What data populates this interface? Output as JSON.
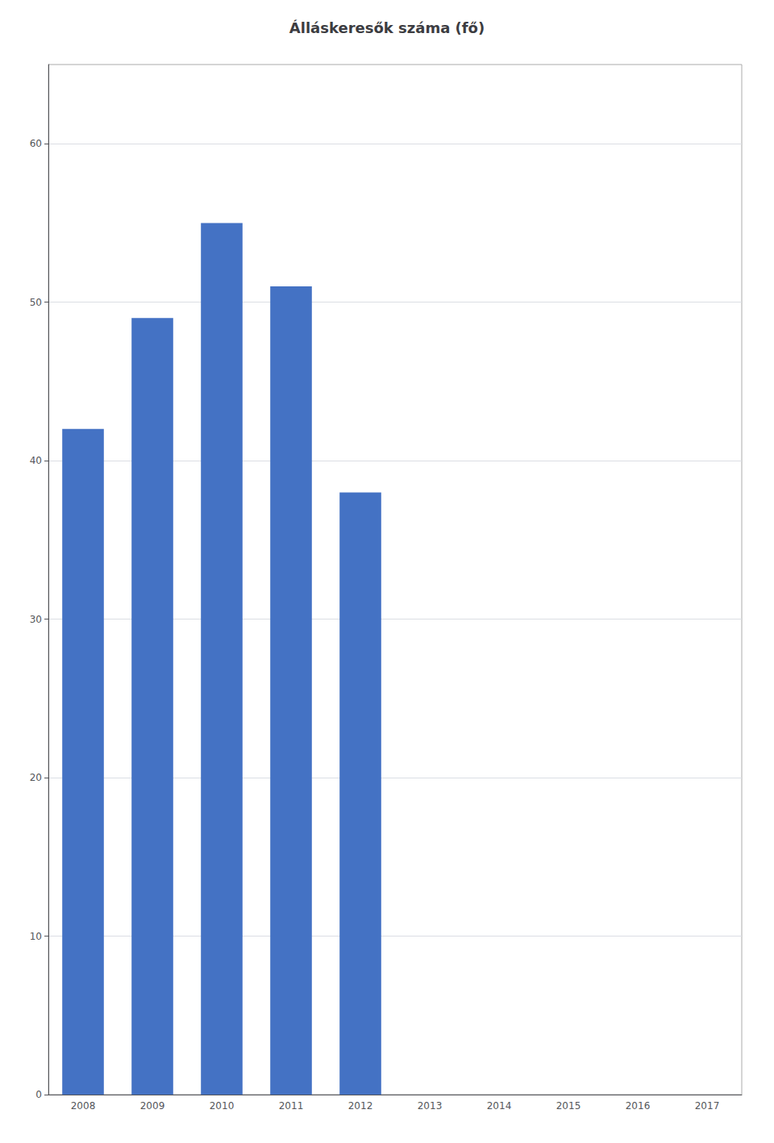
{
  "chart_data": {
    "type": "bar",
    "title": "Álláskeresők száma (fő)",
    "categories": [
      "2008",
      "2009",
      "2010",
      "2011",
      "2012",
      "2013",
      "2014",
      "2015",
      "2016",
      "2017"
    ],
    "values": [
      42,
      49,
      55,
      51,
      38,
      0,
      0,
      0,
      0,
      0
    ],
    "color": "#4472C4",
    "ylim": [
      0,
      65
    ],
    "yticks": [
      0,
      10,
      20,
      30,
      40,
      50,
      60
    ],
    "grid": true
  }
}
